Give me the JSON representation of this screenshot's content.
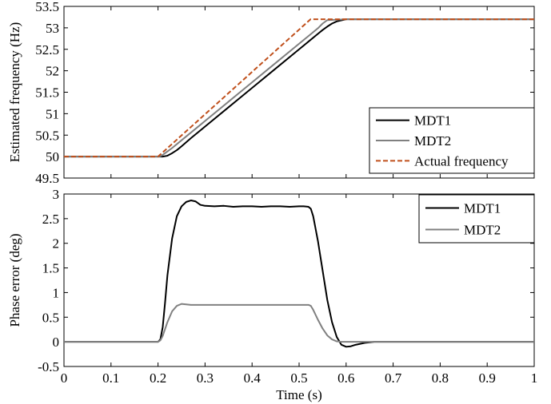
{
  "colors": {
    "MDT1": "#000000",
    "MDT2": "#808080",
    "Actual frequency": "#c0501c"
  },
  "chart_data": [
    {
      "type": "line",
      "xlabel": "",
      "ylabel": "Estimated frequency (Hz)",
      "xlim": [
        0,
        1
      ],
      "ylim": [
        49.5,
        53.5
      ],
      "xticks": [
        "0",
        "0.1",
        "0.2",
        "0.3",
        "0.4",
        "0.5",
        "0.6",
        "0.7",
        "0.8",
        "0.9",
        "1"
      ],
      "show_xtick_labels": false,
      "yticks": [
        "49.5",
        "50",
        "50.5",
        "51",
        "51.5",
        "52",
        "52.5",
        "53",
        "53.5"
      ],
      "legend_position": "lower-right",
      "series": [
        {
          "name": "MDT1",
          "style": "solid",
          "x": [
            0,
            0.2,
            0.21,
            0.22,
            0.23,
            0.24,
            0.25,
            0.27,
            0.3,
            0.35,
            0.4,
            0.45,
            0.5,
            0.52,
            0.54,
            0.55,
            0.56,
            0.57,
            0.58,
            0.6,
            0.7,
            0.8,
            0.9,
            1
          ],
          "y": [
            50,
            50,
            50,
            50.02,
            50.08,
            50.15,
            50.24,
            50.43,
            50.7,
            51.15,
            51.6,
            52.05,
            52.5,
            52.68,
            52.86,
            52.95,
            53.03,
            53.1,
            53.15,
            53.2,
            53.2,
            53.2,
            53.2,
            53.2
          ]
        },
        {
          "name": "MDT2",
          "style": "solid",
          "x": [
            0,
            0.2,
            0.205,
            0.21,
            0.22,
            0.23,
            0.25,
            0.3,
            0.35,
            0.4,
            0.45,
            0.5,
            0.52,
            0.53,
            0.54,
            0.55,
            0.56,
            0.6,
            0.7,
            0.8,
            0.9,
            1
          ],
          "y": [
            50,
            50,
            50.01,
            50.04,
            50.12,
            50.2,
            50.38,
            50.83,
            51.28,
            51.73,
            52.18,
            52.63,
            52.81,
            52.9,
            52.99,
            53.1,
            53.18,
            53.2,
            53.2,
            53.2,
            53.2,
            53.2
          ]
        },
        {
          "name": "Actual frequency",
          "style": "dashed",
          "x": [
            0,
            0.2,
            0.5244,
            0.6,
            0.7,
            0.8,
            0.9,
            1
          ],
          "y": [
            50,
            50,
            53.2,
            53.2,
            53.2,
            53.2,
            53.2,
            53.2
          ]
        }
      ]
    },
    {
      "type": "line",
      "xlabel": "Time (s)",
      "ylabel": "Phase error (deg)",
      "xlim": [
        0,
        1
      ],
      "ylim": [
        -0.5,
        3
      ],
      "xticks": [
        "0",
        "0.1",
        "0.2",
        "0.3",
        "0.4",
        "0.5",
        "0.6",
        "0.7",
        "0.8",
        "0.9",
        "1"
      ],
      "show_xtick_labels": true,
      "yticks": [
        "-0.5",
        "0",
        "0.5",
        "1",
        "1.5",
        "2",
        "2.5",
        "3"
      ],
      "legend_position": "top-right",
      "series": [
        {
          "name": "MDT1",
          "style": "solid",
          "x": [
            0,
            0.2,
            0.205,
            0.21,
            0.215,
            0.22,
            0.23,
            0.24,
            0.25,
            0.26,
            0.27,
            0.28,
            0.29,
            0.3,
            0.32,
            0.34,
            0.36,
            0.38,
            0.4,
            0.42,
            0.44,
            0.46,
            0.48,
            0.5,
            0.51,
            0.52,
            0.525,
            0.53,
            0.54,
            0.55,
            0.56,
            0.57,
            0.58,
            0.59,
            0.6,
            0.61,
            0.62,
            0.63,
            0.64,
            0.65,
            0.66,
            0.68,
            0.7,
            0.8,
            0.9,
            1
          ],
          "y": [
            0,
            0,
            0.05,
            0.3,
            0.8,
            1.35,
            2.1,
            2.55,
            2.75,
            2.84,
            2.87,
            2.85,
            2.78,
            2.76,
            2.75,
            2.76,
            2.74,
            2.75,
            2.75,
            2.74,
            2.75,
            2.75,
            2.74,
            2.75,
            2.75,
            2.74,
            2.7,
            2.55,
            2.05,
            1.45,
            0.85,
            0.4,
            0.1,
            -0.06,
            -0.1,
            -0.09,
            -0.06,
            -0.04,
            -0.02,
            -0.01,
            0,
            0,
            0,
            0,
            0,
            0
          ]
        },
        {
          "name": "MDT2",
          "style": "solid",
          "x": [
            0,
            0.2,
            0.205,
            0.21,
            0.22,
            0.23,
            0.24,
            0.25,
            0.26,
            0.27,
            0.3,
            0.35,
            0.4,
            0.45,
            0.5,
            0.52,
            0.525,
            0.53,
            0.54,
            0.55,
            0.56,
            0.57,
            0.58,
            0.59,
            0.6,
            0.62,
            0.7,
            0.8,
            0.9,
            1
          ],
          "y": [
            0,
            0,
            0.03,
            0.12,
            0.4,
            0.62,
            0.73,
            0.77,
            0.76,
            0.75,
            0.75,
            0.75,
            0.75,
            0.75,
            0.75,
            0.75,
            0.73,
            0.65,
            0.45,
            0.27,
            0.13,
            0.05,
            0.01,
            0,
            0,
            0,
            0,
            0,
            0,
            0
          ]
        }
      ]
    }
  ]
}
